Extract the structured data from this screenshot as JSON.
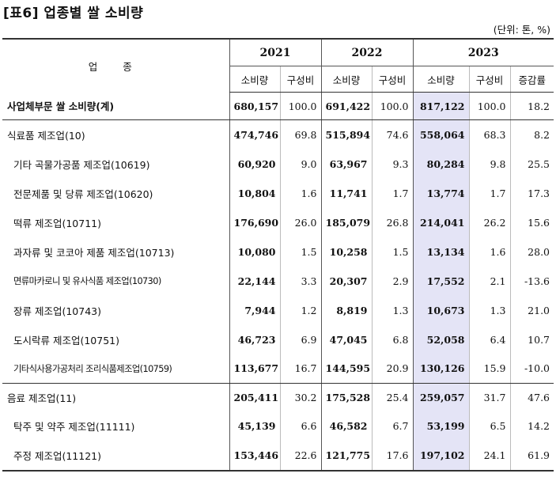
{
  "title": "[표6] 업종별 쌀 소비량",
  "unit": "(단위: 톤, %)",
  "header": {
    "category": "업 종",
    "years": [
      "2021",
      "2022",
      "2023"
    ],
    "consumption": "소비량",
    "share": "구성비",
    "change": "증감률"
  },
  "rows": [
    {
      "name": "사업체부문 쌀 소비량(계)",
      "v2021": "680,157",
      "s2021": "100.0",
      "v2022": "691,422",
      "s2022": "100.0",
      "v2023": "817,122",
      "s2023": "100.0",
      "chg": "18.2"
    },
    {
      "name": "식료품 제조업(10)",
      "v2021": "474,746",
      "s2021": "69.8",
      "v2022": "515,894",
      "s2022": "74.6",
      "v2023": "558,064",
      "s2023": "68.3",
      "chg": "8.2"
    },
    {
      "name": "기타 곡물가공품 제조업(10619)",
      "v2021": "60,920",
      "s2021": "9.0",
      "v2022": "63,967",
      "s2022": "9.3",
      "v2023": "80,284",
      "s2023": "9.8",
      "chg": "25.5"
    },
    {
      "name": "전문제품 및 당류 제조업(10620)",
      "v2021": "10,804",
      "s2021": "1.6",
      "v2022": "11,741",
      "s2022": "1.7",
      "v2023": "13,774",
      "s2023": "1.7",
      "chg": "17.3"
    },
    {
      "name": "떡류 제조업(10711)",
      "v2021": "176,690",
      "s2021": "26.0",
      "v2022": "185,079",
      "s2022": "26.8",
      "v2023": "214,041",
      "s2023": "26.2",
      "chg": "15.6"
    },
    {
      "name": "과자류 및 코코아 제품 제조업(10713)",
      "v2021": "10,080",
      "s2021": "1.5",
      "v2022": "10,258",
      "s2022": "1.5",
      "v2023": "13,134",
      "s2023": "1.6",
      "chg": "28.0"
    },
    {
      "name": "면류마카로니 및 유사식품 제조업(10730)",
      "v2021": "22,144",
      "s2021": "3.3",
      "v2022": "20,307",
      "s2022": "2.9",
      "v2023": "17,552",
      "s2023": "2.1",
      "chg": "-13.6"
    },
    {
      "name": "장류 제조업(10743)",
      "v2021": "7,944",
      "s2021": "1.2",
      "v2022": "8,819",
      "s2022": "1.3",
      "v2023": "10,673",
      "s2023": "1.3",
      "chg": "21.0"
    },
    {
      "name": "도시락류 제조업(10751)",
      "v2021": "46,723",
      "s2021": "6.9",
      "v2022": "47,045",
      "s2022": "6.8",
      "v2023": "52,058",
      "s2023": "6.4",
      "chg": "10.7"
    },
    {
      "name": "기타식사용가공처리 조리식품제조업(10759)",
      "v2021": "113,677",
      "s2021": "16.7",
      "v2022": "144,595",
      "s2022": "20.9",
      "v2023": "130,126",
      "s2023": "15.9",
      "chg": "-10.0"
    },
    {
      "name": "음료 제조업(11)",
      "v2021": "205,411",
      "s2021": "30.2",
      "v2022": "175,528",
      "s2022": "25.4",
      "v2023": "259,057",
      "s2023": "31.7",
      "chg": "47.6"
    },
    {
      "name": "탁주 및 약주 제조업(11111)",
      "v2021": "45,139",
      "s2021": "6.6",
      "v2022": "46,582",
      "s2022": "6.7",
      "v2023": "53,199",
      "s2023": "6.5",
      "chg": "14.2"
    },
    {
      "name": "주정 제조업(11121)",
      "v2021": "153,446",
      "s2021": "22.6",
      "v2022": "121,775",
      "s2022": "17.6",
      "v2023": "197,102",
      "s2023": "24.1",
      "chg": "61.9"
    }
  ],
  "colors": {
    "highlight": "#e4e4f6"
  }
}
